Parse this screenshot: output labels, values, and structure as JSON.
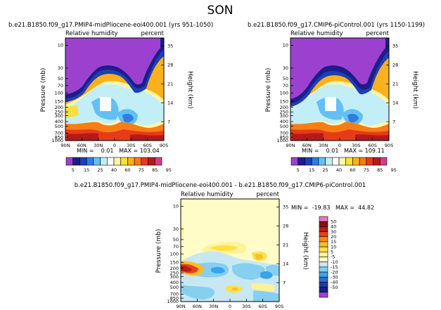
{
  "main_title": "SON",
  "colors": {
    "fill_levels": [
      "#9c41cf",
      "#1b1d8a",
      "#1e3fb5",
      "#2e7de6",
      "#62c0f5",
      "#c2eef8",
      "#ffffff",
      "#fff6a8",
      "#fcdf3c",
      "#fbb11e",
      "#f77d14",
      "#e83a1a",
      "#b31a1a",
      "#d53c88"
    ],
    "diff_levels": [
      "#9b42cd",
      "#1b1d8a",
      "#243aa8",
      "#2d6bd8",
      "#3aa3ec",
      "#86cfef",
      "#c7e8f3",
      "#fffcc8",
      "#fff39a",
      "#fde04a",
      "#fbbd2a",
      "#f7891a",
      "#e8401c",
      "#b81b1b",
      "#8a0f0f",
      "#ec74b5"
    ]
  },
  "chart_data": [
    {
      "type": "contour",
      "title": "b.e21.B1850.f09_g17.PMIP4-midPliocene-eoi400.001 (yrs 951-1050)",
      "left_label": "Relative humidity",
      "right_label": "percent",
      "ylabel": "Pressure (mb)",
      "ylabel_right": "Height (km)",
      "x_ticks": [
        "90N",
        "60N",
        "30N",
        "0",
        "30S",
        "60S",
        "90S"
      ],
      "y_ticks": [
        "10",
        "30",
        "50",
        "70",
        "100",
        "150",
        "200",
        "250",
        "300",
        "400",
        "500",
        "700",
        "850",
        "1000"
      ],
      "height_ticks": [
        "35",
        "28",
        "21",
        "14",
        "7"
      ],
      "stats_text": "MIN =    0.01   MAX = 103.04",
      "min": 0.01,
      "max": 103.04,
      "label_bar": {
        "levels": [
          5,
          10,
          15,
          20,
          25,
          30,
          40,
          50,
          60,
          70,
          75,
          80,
          85,
          90,
          95
        ],
        "labels": [
          "5",
          "15",
          "25",
          "40",
          "60",
          "75",
          "85",
          "95"
        ]
      }
    },
    {
      "type": "contour",
      "title": "b.e21.B1850.f09_g17.CMIP6-piControl.001 (yrs 1150-1199)",
      "left_label": "Relative humidity",
      "right_label": "percent",
      "ylabel": "Pressure (mb)",
      "ylabel_right": "Height (km)",
      "x_ticks": [
        "90N",
        "60N",
        "30N",
        "0",
        "30S",
        "60S",
        "90S"
      ],
      "y_ticks": [
        "10",
        "30",
        "50",
        "70",
        "100",
        "150",
        "200",
        "250",
        "300",
        "400",
        "500",
        "700",
        "850",
        "1000"
      ],
      "height_ticks": [
        "35",
        "28",
        "21",
        "14",
        "7"
      ],
      "stats_text": "MIN =    0.01   MAX = 109.11",
      "min": 0.01,
      "max": 109.11,
      "label_bar": {
        "levels": [
          5,
          10,
          15,
          20,
          25,
          30,
          40,
          50,
          60,
          70,
          75,
          80,
          85,
          90,
          95
        ],
        "labels": [
          "5",
          "15",
          "25",
          "40",
          "60",
          "75",
          "85",
          "95"
        ]
      }
    },
    {
      "type": "contour",
      "title": "b.e21.B1850.f09_g17.PMIP4-midPliocene-eoi400.001 - b.e21.B1850.f09_g17.CMIP6-piControl.001",
      "left_label": "Relative humidity",
      "right_label": "percent",
      "ylabel": "Pressure (mb)",
      "ylabel_right": "Height (km)",
      "x_ticks": [
        "90N",
        "60N",
        "30N",
        "0",
        "30S",
        "60S",
        "90S"
      ],
      "y_ticks": [
        "10",
        "30",
        "50",
        "70",
        "100",
        "150",
        "200",
        "250",
        "300",
        "400",
        "500",
        "700",
        "850",
        "1000"
      ],
      "height_ticks": [
        "35",
        "28",
        "21",
        "14",
        "7"
      ],
      "stats_text": "MIN =  -19.83   MAX =  44.82",
      "min": -19.83,
      "max": 44.82,
      "label_bar": {
        "levels": [
          50,
          40,
          30,
          20,
          15,
          10,
          5,
          -5,
          -10,
          -15,
          -20,
          -30,
          -40,
          -50
        ],
        "labels": [
          "50",
          "40",
          "30",
          "20",
          "15",
          "10",
          "5",
          "-5",
          "-10",
          "-15",
          "-20",
          "-30",
          "-40",
          "-50"
        ]
      }
    }
  ]
}
